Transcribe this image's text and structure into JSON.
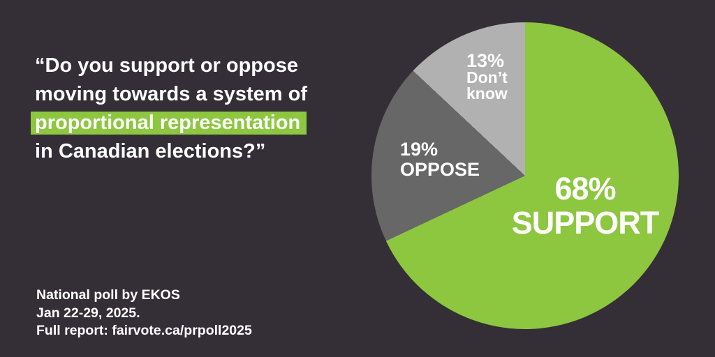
{
  "colors": {
    "background": "#342e36",
    "accent_green": "#8dc63f",
    "slice_dark_gray": "#676767",
    "slice_light_gray": "#b1b1b1",
    "text": "#ffffff"
  },
  "quote": {
    "line1": "“Do you support or oppose",
    "line2": "moving towards a system of",
    "line3": "proportional representation",
    "line4": "in Canadian elections?”"
  },
  "attribution": {
    "source": "National poll by EKOS",
    "dates": "Jan 22-29, 2025.",
    "report": "Full report: fairvote.ca/prpoll2025"
  },
  "chart_data": {
    "type": "pie",
    "title": "Do you support or oppose moving towards a system of proportional representation in Canadian elections?",
    "categories": [
      "Support",
      "Oppose",
      "Don't know"
    ],
    "values": [
      68,
      19,
      13
    ],
    "unit": "%",
    "colors": [
      "#8dc63f",
      "#676767",
      "#b1b1b1"
    ],
    "start_angle_deg": 0,
    "direction": "clockwise",
    "legend": "none",
    "labels": {
      "support": {
        "pct": "68%",
        "name": "SUPPORT"
      },
      "oppose": {
        "pct": "19%",
        "name": "OPPOSE"
      },
      "dont_know": {
        "pct": "13%",
        "line1": "Don’t",
        "line2": "know"
      }
    }
  }
}
